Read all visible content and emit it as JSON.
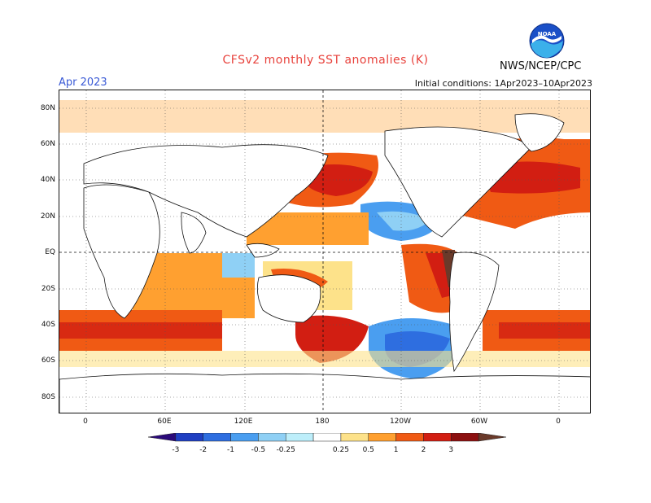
{
  "header": {
    "title": "CFSv2 monthly SST anomalies (K)",
    "month": "Apr 2023",
    "initial_conditions": "Initial conditions: 1Apr2023–10Apr2023",
    "org": "NWS/NCEP/CPC",
    "logo_text": "NOAA"
  },
  "map": {
    "lat_labels": [
      "80N",
      "60N",
      "40N",
      "20N",
      "EQ",
      "20S",
      "40S",
      "60S",
      "80S"
    ],
    "lon_labels": [
      "0",
      "60E",
      "120E",
      "180",
      "120W",
      "60W",
      "0"
    ],
    "projection": "cylindrical equidistant",
    "grid": "dotted",
    "reference_lines": [
      "equator",
      "dateline"
    ]
  },
  "colorbar": {
    "labels": [
      "-3",
      "-2",
      "-1",
      "-0.5",
      "-0.25",
      "0.25",
      "0.5",
      "1",
      "2",
      "3"
    ],
    "colors": [
      "#2b0a7a",
      "#1f3fc2",
      "#2e6ee0",
      "#4a9ef0",
      "#8fd0f5",
      "#bdeefa",
      "#ffffff",
      "#fde28a",
      "#ffa030",
      "#f05a14",
      "#d21e12",
      "#8c1010",
      "#6a3a2a"
    ]
  }
}
